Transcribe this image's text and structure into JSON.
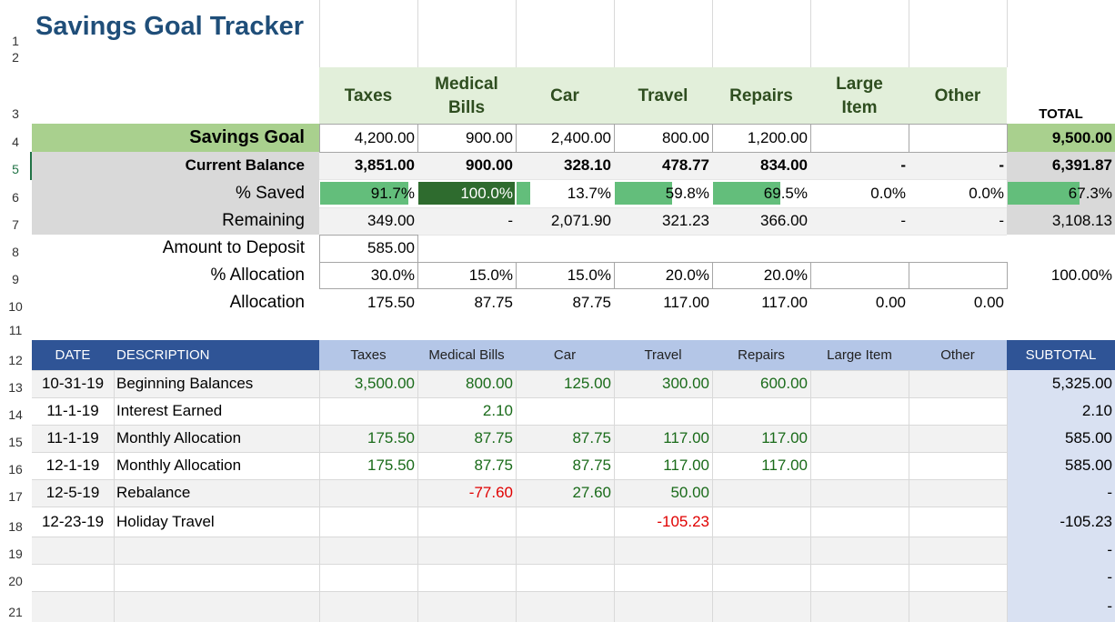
{
  "sheet": {
    "title": "Savings Goal Tracker",
    "row_numbers": [
      "1",
      "2",
      "3",
      "4",
      "5",
      "6",
      "7",
      "8",
      "9",
      "10",
      "11",
      "12",
      "13",
      "14",
      "15",
      "16",
      "17",
      "18",
      "19",
      "20",
      "21"
    ],
    "categories": [
      "Taxes",
      "Medical Bills",
      "Car",
      "Travel",
      "Repairs",
      "Large Item",
      "Other"
    ],
    "total_label": "TOTAL",
    "summary": {
      "savings_goal": {
        "label": "Savings Goal",
        "values": [
          "4,200.00",
          "900.00",
          "2,400.00",
          "800.00",
          "1,200.00",
          "",
          ""
        ],
        "total": "9,500.00"
      },
      "current_balance": {
        "label": "Current Balance",
        "values": [
          "3,851.00",
          "900.00",
          "328.10",
          "478.77",
          "834.00",
          "-",
          "-"
        ],
        "total": "6,391.87"
      },
      "pct_saved": {
        "label": "% Saved",
        "values": [
          "91.7%",
          "100.0%",
          "13.7%",
          "59.8%",
          "69.5%",
          "0.0%",
          "0.0%"
        ],
        "fractions": [
          0.917,
          1.0,
          0.137,
          0.598,
          0.695,
          0,
          0
        ],
        "total": "67.3%",
        "total_fraction": 0.673
      },
      "remaining": {
        "label": "Remaining",
        "values": [
          "349.00",
          "-",
          "2,071.90",
          "321.23",
          "366.00",
          "-",
          "-"
        ],
        "total": "3,108.13"
      },
      "amount_to_deposit": {
        "label": "Amount to Deposit",
        "value": "585.00"
      },
      "pct_allocation": {
        "label": "% Allocation",
        "values": [
          "30.0%",
          "15.0%",
          "15.0%",
          "20.0%",
          "20.0%",
          "",
          ""
        ],
        "total": "100.00%"
      },
      "allocation": {
        "label": "Allocation",
        "values": [
          "175.50",
          "87.75",
          "87.75",
          "117.00",
          "117.00",
          "0.00",
          "0.00"
        ]
      }
    },
    "ledger": {
      "headers": {
        "date": "DATE",
        "description": "DESCRIPTION",
        "categories": [
          "Taxes",
          "Medical Bills",
          "Car",
          "Travel",
          "Repairs",
          "Large Item",
          "Other"
        ],
        "subtotal": "SUBTOTAL"
      },
      "rows": [
        {
          "date": "10-31-19",
          "description": "Beginning Balances",
          "values": [
            "3,500.00",
            "800.00",
            "125.00",
            "300.00",
            "600.00",
            "",
            ""
          ],
          "subtotal": "5,325.00"
        },
        {
          "date": "11-1-19",
          "description": "Interest Earned",
          "values": [
            "",
            "2.10",
            "",
            "",
            "",
            "",
            ""
          ],
          "subtotal": "2.10"
        },
        {
          "date": "11-1-19",
          "description": "Monthly Allocation",
          "values": [
            "175.50",
            "87.75",
            "87.75",
            "117.00",
            "117.00",
            "",
            ""
          ],
          "subtotal": "585.00"
        },
        {
          "date": "12-1-19",
          "description": "Monthly Allocation",
          "values": [
            "175.50",
            "87.75",
            "87.75",
            "117.00",
            "117.00",
            "",
            ""
          ],
          "subtotal": "585.00"
        },
        {
          "date": "12-5-19",
          "description": "Rebalance",
          "values": [
            "",
            "-77.60",
            "27.60",
            "50.00",
            "",
            "",
            ""
          ],
          "subtotal": "-"
        },
        {
          "date": "12-23-19",
          "description": "Holiday Travel",
          "values": [
            "",
            "",
            "",
            "-105.23",
            "",
            "",
            ""
          ],
          "subtotal": "-105.23"
        },
        {
          "date": "",
          "description": "",
          "values": [
            "",
            "",
            "",
            "",
            "",
            "",
            ""
          ],
          "subtotal": "-"
        },
        {
          "date": "",
          "description": "",
          "values": [
            "",
            "",
            "",
            "",
            "",
            "",
            ""
          ],
          "subtotal": "-"
        },
        {
          "date": "",
          "description": "",
          "values": [
            "",
            "",
            "",
            "",
            "",
            "",
            ""
          ],
          "subtotal": "-"
        }
      ]
    },
    "colors": {
      "title": "#1f4e79",
      "category_header_bg": "#e2efda",
      "savings_goal_bg": "#a9d08e",
      "gray_band": "#d9d9d9",
      "light_gray_band": "#f2f2f2",
      "data_bar": "#63be7b",
      "data_bar_full": "#2e6b2e",
      "ledger_header_dark": "#2f5496",
      "ledger_header_light": "#b4c6e7",
      "subtotal_column": "#d9e1f2",
      "positive_text": "#1a6b1a",
      "negative_text": "#e00000"
    }
  }
}
